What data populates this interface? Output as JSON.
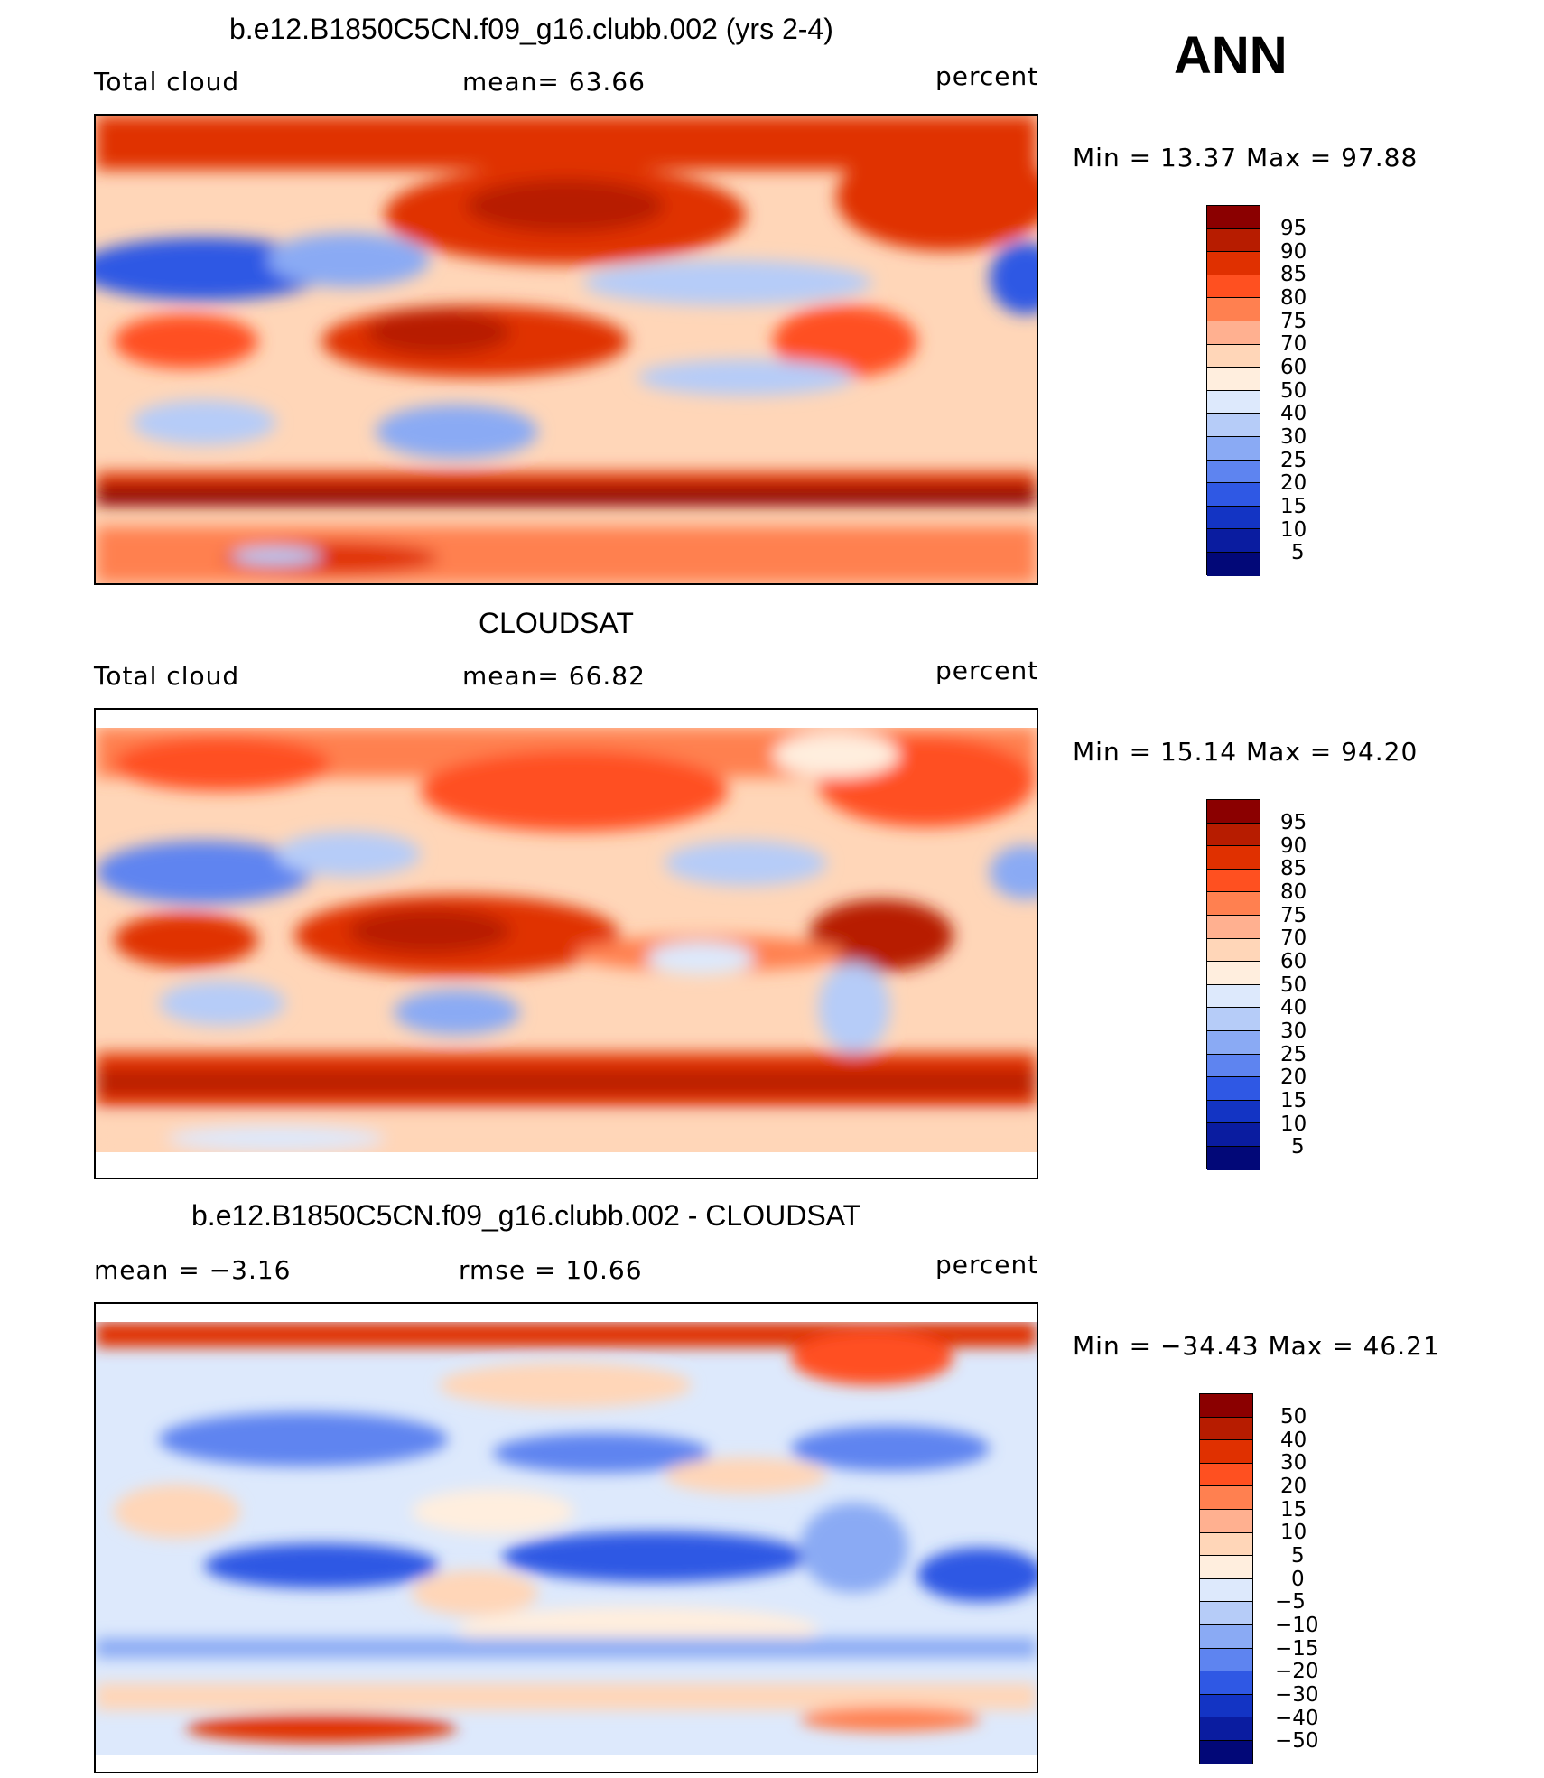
{
  "season": "ANN",
  "panels": [
    {
      "title": "b.e12.B1850C5CN.f09_g16.clubb.002 (yrs 2-4)",
      "left_label": "Total cloud",
      "center_label": "mean=   63.66",
      "right_label": "percent",
      "stats": "Min =   13.37  Max =   97.88",
      "legend": [
        "95",
        "90",
        "85",
        "80",
        "75",
        "70",
        "60",
        "50",
        "40",
        "30",
        "25",
        "20",
        "15",
        "10",
        "5"
      ]
    },
    {
      "title": "CLOUDSAT",
      "left_label": "Total cloud",
      "center_label": "mean=   66.82",
      "right_label": "percent",
      "stats": "Min =   15.14  Max =   94.20",
      "legend": [
        "95",
        "90",
        "85",
        "80",
        "75",
        "70",
        "60",
        "50",
        "40",
        "30",
        "25",
        "20",
        "15",
        "10",
        "5"
      ]
    },
    {
      "title": "b.e12.B1850C5CN.f09_g16.clubb.002 - CLOUDSAT",
      "left_label": "mean =   −3.16",
      "center_label": "rmse =   10.66",
      "right_label": "percent",
      "stats": "Min = −34.43  Max =   46.21",
      "legend": [
        "50",
        "40",
        "30",
        "20",
        "15",
        "10",
        "5",
        "0",
        "−5",
        "−10",
        "−15",
        "−20",
        "−30",
        "−40",
        "−50"
      ]
    }
  ],
  "colors": {
    "scale": [
      "#8b0000",
      "#b71c00",
      "#e03000",
      "#ff5020",
      "#ff8050",
      "#ffb090",
      "#ffd6b8",
      "#ffeede",
      "#dde9fc",
      "#b6ccf8",
      "#8aaaf4",
      "#5e84f0",
      "#2f58e4",
      "#1334c4",
      "#0a1ca0",
      "#020878"
    ]
  }
}
